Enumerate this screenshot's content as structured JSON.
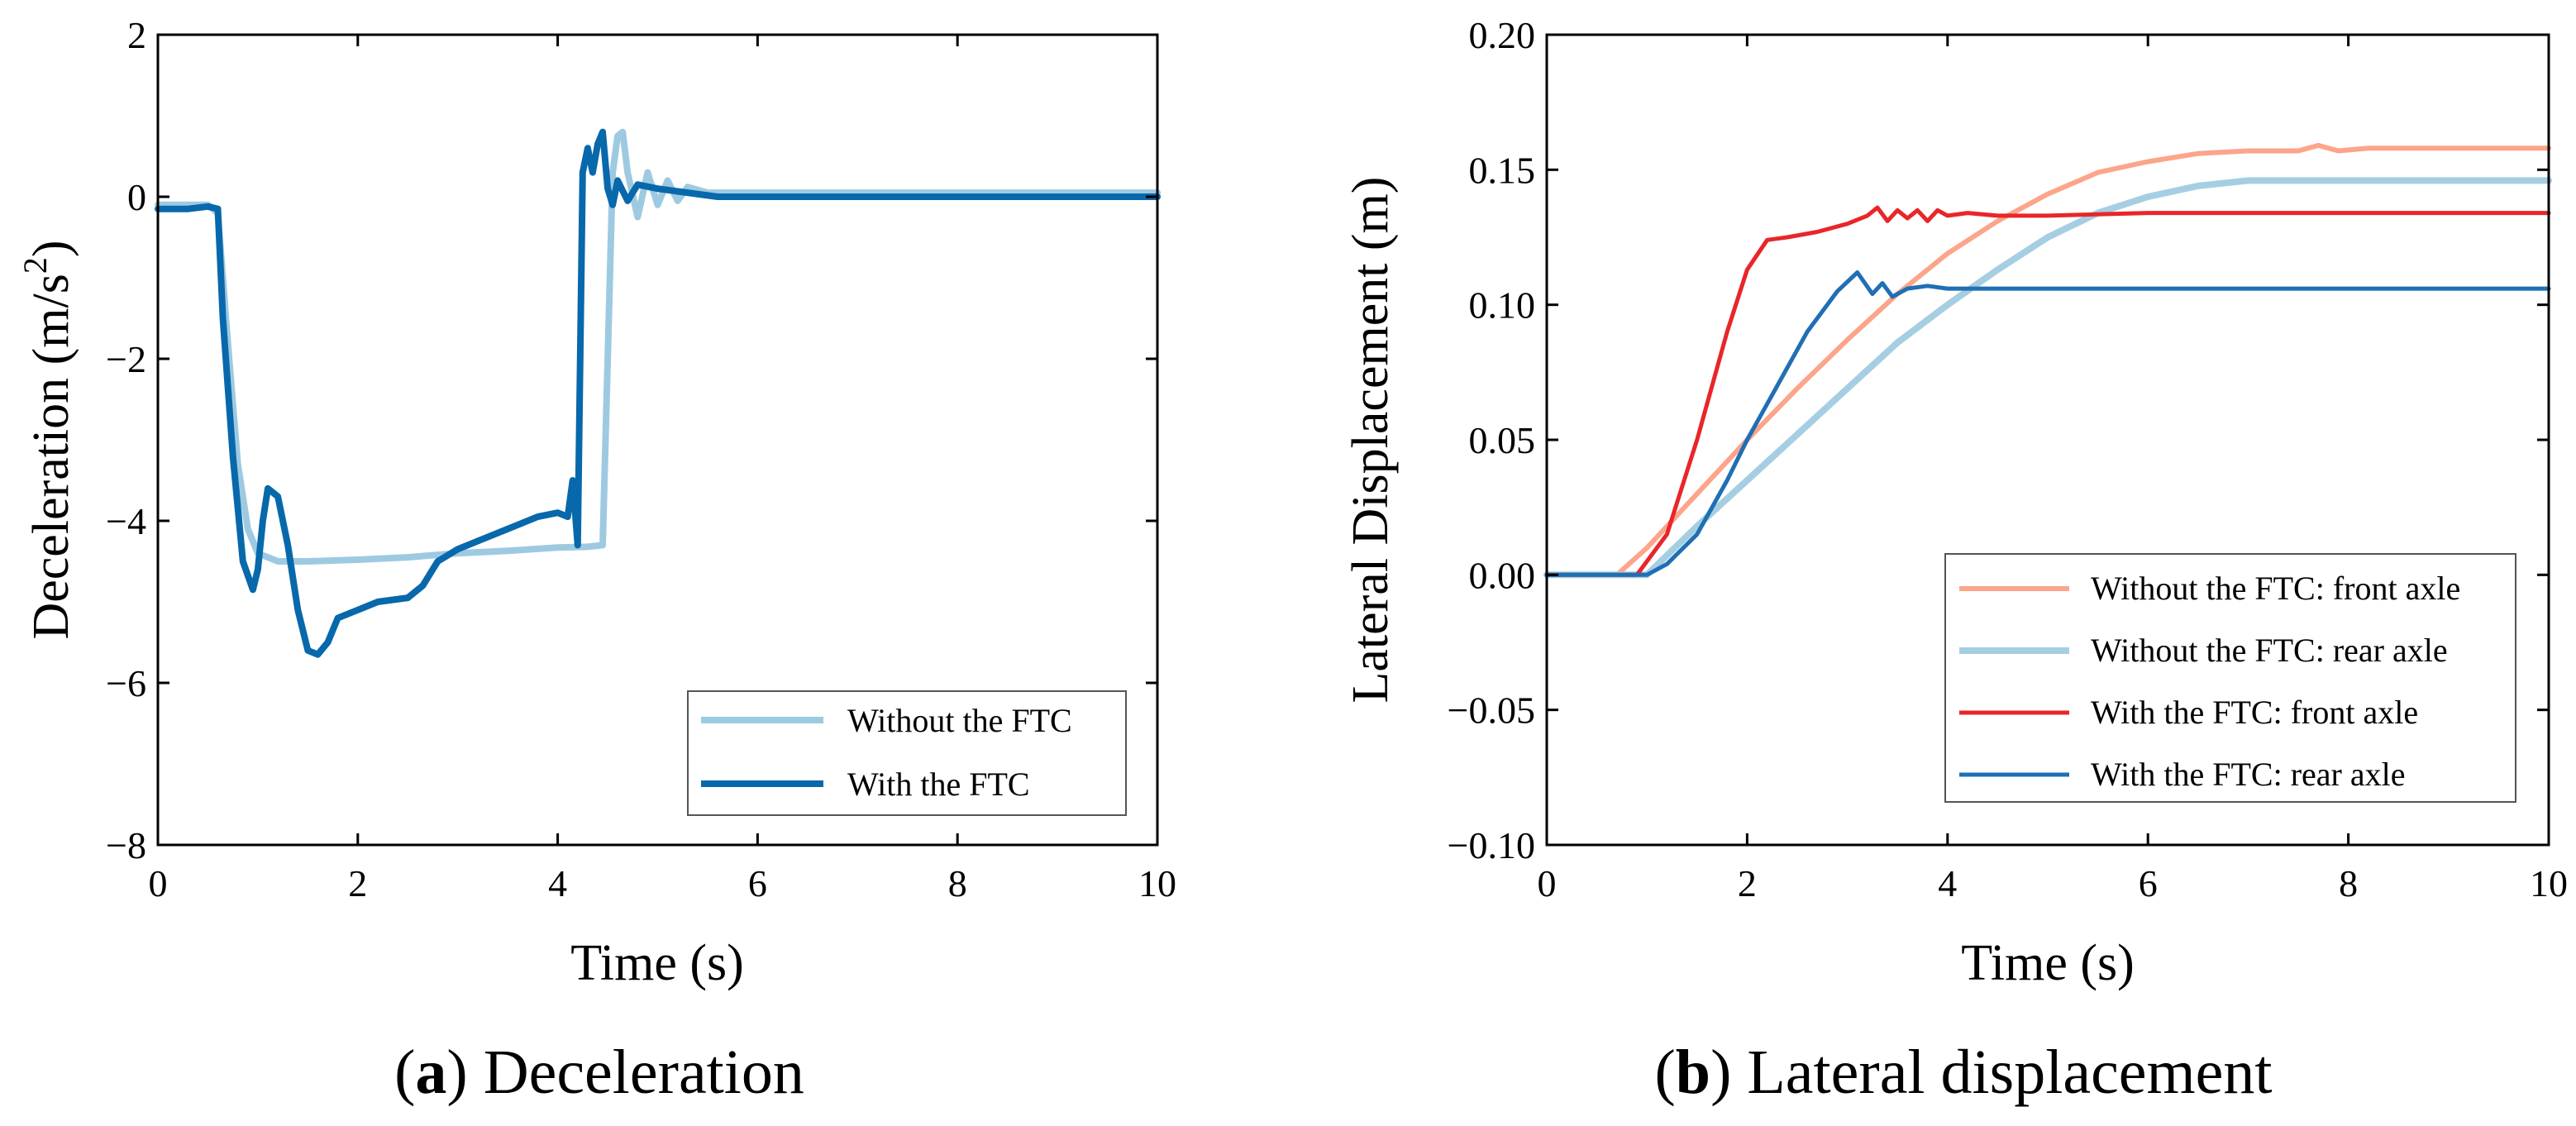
{
  "chart_data": [
    {
      "type": "line",
      "caption_letter": "a",
      "caption_text": "Deceleration",
      "xlabel": "Time (s)",
      "ylabel_main": "Deceleration (m/s",
      "ylabel_sup": "2",
      "ylabel_close": ")",
      "xlim": [
        0,
        10
      ],
      "ylim": [
        -8,
        2
      ],
      "xticks": [
        0,
        2,
        4,
        6,
        8,
        10
      ],
      "yticks": [
        -8,
        -6,
        -4,
        -2,
        0,
        2
      ],
      "legend_position": "lower-right",
      "grid": false,
      "series": [
        {
          "name": "Without the FTC",
          "color": "#9ecae1",
          "x": [
            0,
            0.3,
            0.5,
            0.6,
            0.7,
            0.8,
            0.9,
            1.0,
            1.1,
            1.2,
            1.5,
            2.0,
            2.5,
            3.0,
            3.5,
            4.0,
            4.3,
            4.45,
            4.5,
            4.55,
            4.6,
            4.65,
            4.7,
            4.8,
            4.9,
            5.0,
            5.1,
            5.2,
            5.3,
            5.5,
            6.0,
            7.0,
            8.0,
            9.0,
            10.0
          ],
          "y": [
            -0.1,
            -0.1,
            -0.1,
            -0.2,
            -1.8,
            -3.3,
            -4.1,
            -4.4,
            -4.45,
            -4.5,
            -4.5,
            -4.48,
            -4.45,
            -4.4,
            -4.37,
            -4.33,
            -4.32,
            -4.3,
            -2.0,
            0.3,
            0.75,
            0.8,
            0.3,
            -0.25,
            0.3,
            -0.1,
            0.2,
            -0.05,
            0.12,
            0.05,
            0.05,
            0.05,
            0.05,
            0.05,
            0.05
          ]
        },
        {
          "name": "With the FTC",
          "color": "#0868ac",
          "x": [
            0,
            0.3,
            0.5,
            0.6,
            0.65,
            0.75,
            0.85,
            0.95,
            1.0,
            1.05,
            1.1,
            1.2,
            1.3,
            1.4,
            1.5,
            1.6,
            1.7,
            1.8,
            2.0,
            2.2,
            2.5,
            2.65,
            2.8,
            3.0,
            3.3,
            3.6,
            3.8,
            4.0,
            4.1,
            4.15,
            4.2,
            4.25,
            4.3,
            4.35,
            4.4,
            4.45,
            4.5,
            4.55,
            4.6,
            4.7,
            4.8,
            5.0,
            5.3,
            5.6,
            6.0,
            7.0,
            8.0,
            9.0,
            10.0
          ],
          "y": [
            -0.15,
            -0.15,
            -0.12,
            -0.15,
            -1.5,
            -3.2,
            -4.5,
            -4.85,
            -4.6,
            -4.0,
            -3.6,
            -3.7,
            -4.3,
            -5.1,
            -5.6,
            -5.65,
            -5.5,
            -5.2,
            -5.1,
            -5.0,
            -4.95,
            -4.8,
            -4.5,
            -4.35,
            -4.2,
            -4.05,
            -3.95,
            -3.9,
            -3.95,
            -3.5,
            -4.3,
            0.3,
            0.6,
            0.3,
            0.65,
            0.8,
            0.1,
            -0.1,
            0.2,
            -0.05,
            0.15,
            0.1,
            0.05,
            0.0,
            0.0,
            0.0,
            0.0,
            0.0,
            0.0
          ]
        }
      ]
    },
    {
      "type": "line",
      "caption_letter": "b",
      "caption_text": "Lateral displacement",
      "xlabel": "Time (s)",
      "ylabel": "Lateral Displacement (m)",
      "xlim": [
        0,
        10
      ],
      "ylim": [
        -0.1,
        0.2
      ],
      "xticks": [
        0,
        2,
        4,
        6,
        8,
        10
      ],
      "yticks": [
        -0.1,
        -0.05,
        0.0,
        0.05,
        0.1,
        0.15,
        0.2
      ],
      "ytick_labels": [
        "−0.10",
        "−0.05",
        "0.00",
        "0.05",
        "0.10",
        "0.15",
        "0.20"
      ],
      "legend_position": "lower-right",
      "grid": false,
      "series": [
        {
          "name": "Without the FTC: front axle",
          "color": "#fca58a",
          "x": [
            0,
            0.7,
            1.0,
            1.5,
            2.0,
            2.5,
            3.0,
            3.5,
            4.0,
            4.5,
            5.0,
            5.5,
            6.0,
            6.5,
            7.0,
            7.5,
            7.7,
            7.9,
            8.2,
            8.6,
            9.0,
            10.0
          ],
          "y": [
            0.0,
            0.0,
            0.01,
            0.03,
            0.05,
            0.069,
            0.087,
            0.104,
            0.119,
            0.131,
            0.141,
            0.149,
            0.153,
            0.156,
            0.157,
            0.157,
            0.159,
            0.157,
            0.158,
            0.158,
            0.158,
            0.158
          ]
        },
        {
          "name": "Without the FTC: rear axle",
          "color": "#a6cee3",
          "x": [
            0,
            1.0,
            1.5,
            2.0,
            2.5,
            3.0,
            3.5,
            4.0,
            4.5,
            5.0,
            5.5,
            6.0,
            6.5,
            7.0,
            7.5,
            8.0,
            9.0,
            10.0
          ],
          "y": [
            0.0,
            0.0,
            0.018,
            0.035,
            0.052,
            0.069,
            0.086,
            0.1,
            0.113,
            0.125,
            0.134,
            0.14,
            0.144,
            0.146,
            0.146,
            0.146,
            0.146,
            0.146
          ],
          "width": 6
        },
        {
          "name": "With the FTC: front axle",
          "color": "#e8262a",
          "x": [
            0,
            0.9,
            1.2,
            1.5,
            1.8,
            2.0,
            2.2,
            2.4,
            2.7,
            3.0,
            3.2,
            3.3,
            3.4,
            3.5,
            3.6,
            3.7,
            3.8,
            3.9,
            4.0,
            4.2,
            4.5,
            5.0,
            6.0,
            7.0,
            8.0,
            10.0
          ],
          "y": [
            0.0,
            0.0,
            0.015,
            0.05,
            0.09,
            0.113,
            0.124,
            0.125,
            0.127,
            0.13,
            0.133,
            0.136,
            0.131,
            0.135,
            0.132,
            0.135,
            0.131,
            0.135,
            0.133,
            0.134,
            0.133,
            0.133,
            0.134,
            0.134,
            0.134,
            0.134
          ]
        },
        {
          "name": "With the FTC: rear axle",
          "color": "#1f6fb4",
          "x": [
            0,
            1.0,
            1.2,
            1.5,
            1.8,
            2.0,
            2.3,
            2.6,
            2.9,
            3.1,
            3.25,
            3.35,
            3.45,
            3.6,
            3.8,
            4.0,
            5.0,
            6.0,
            7.0,
            8.0,
            10.0
          ],
          "y": [
            0.0,
            0.0,
            0.004,
            0.015,
            0.035,
            0.05,
            0.07,
            0.09,
            0.105,
            0.112,
            0.104,
            0.108,
            0.103,
            0.106,
            0.107,
            0.106,
            0.106,
            0.106,
            0.106,
            0.106,
            0.106
          ]
        }
      ]
    }
  ]
}
